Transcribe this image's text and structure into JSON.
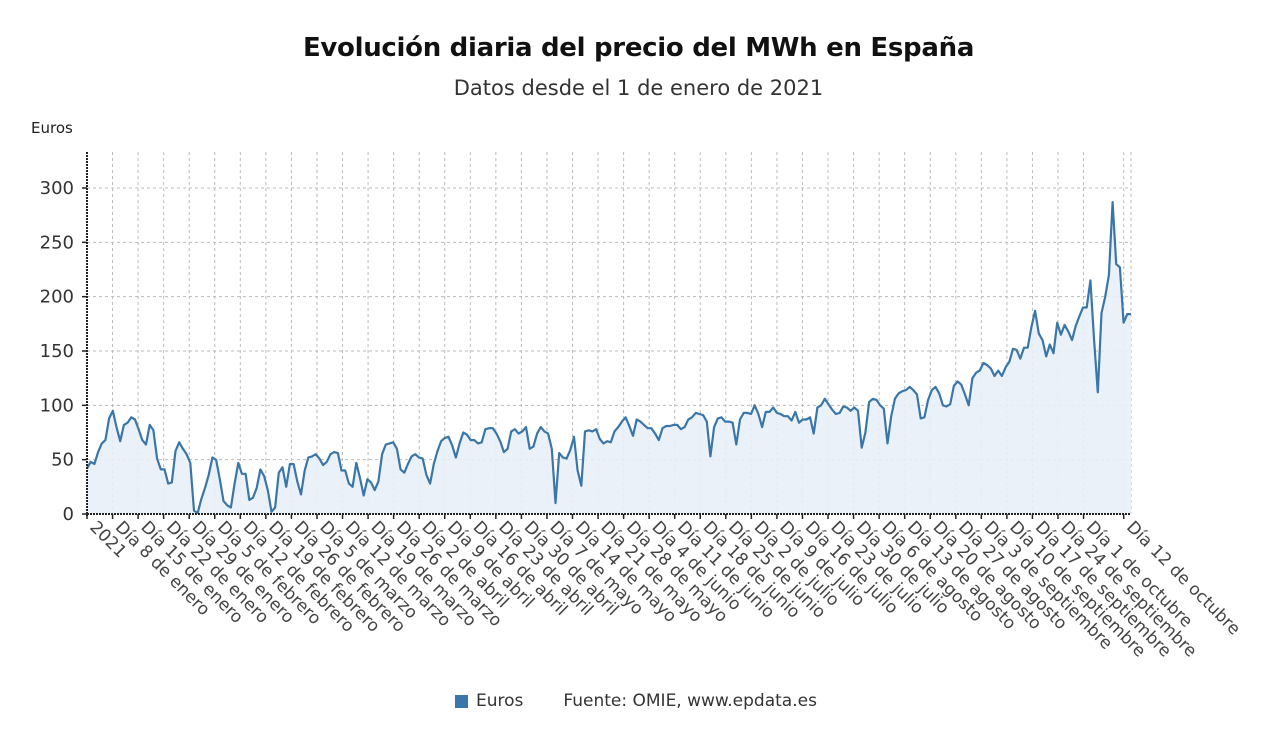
{
  "chart_data": {
    "type": "area",
    "title": "Evolución diaria del precio del MWh en España",
    "subtitle": "Datos desde el 1 de enero de 2021",
    "ylabel": "Euros",
    "xlabel": "",
    "ylim": [
      0,
      330
    ],
    "yticks": [
      0,
      50,
      100,
      150,
      200,
      250,
      300
    ],
    "grid": true,
    "legend": {
      "placement": "bottom-center",
      "entries": [
        "Euros"
      ]
    },
    "source": "Fuente: OMIE, www.epdata.es",
    "colors": {
      "line": "#3a76a8",
      "fill": "#e9eff7",
      "grid": "#bbbbbb"
    },
    "x_start": "2021-01-01",
    "x_end_day_index": 286,
    "xtick_labels": [
      "2021",
      "Día 8 de enero",
      "Día 15 de enero",
      "Día 22 de enero",
      "Día 29 de enero",
      "Día 5 de febrero",
      "Día 12 de febrero",
      "Día 19 de febrero",
      "Día 26 de febrero",
      "Día 5 de marzo",
      "Día 12 de marzo",
      "Día 19 de marzo",
      "Día 26 de marzo",
      "Día 2 de abril",
      "Día 9 de abril",
      "Día 16 de abril",
      "Día 23 de abril",
      "Día 30 de abril",
      "Día 7 de mayo",
      "Día 14 de mayo",
      "Día 21 de mayo",
      "Día 28 de mayo",
      "Día 4 de junio",
      "Día 11 de junio",
      "Día 18 de junio",
      "Día 25 de junio",
      "Día 2 de julio",
      "Día 9 de julio",
      "Día 16 de julio",
      "Día 23 de julio",
      "Día 30 de julio",
      "Día 6 de agosto",
      "Día 13 de agosto",
      "Día 20 de agosto",
      "Día 27 de agosto",
      "Día 3 de septiembre",
      "Día 10 de septiembre",
      "Día 17 de septiembre",
      "Día 24 de septiembre",
      "Día 1 de octubre",
      "Día 12 de octubre"
    ],
    "xtick_days": [
      0,
      7,
      14,
      21,
      28,
      35,
      42,
      49,
      56,
      63,
      70,
      77,
      84,
      91,
      98,
      105,
      112,
      119,
      126,
      133,
      140,
      147,
      154,
      161,
      168,
      175,
      182,
      189,
      196,
      203,
      210,
      217,
      224,
      231,
      238,
      245,
      252,
      259,
      266,
      273,
      284
    ],
    "series": [
      {
        "name": "Euros",
        "values": [
          42,
          48,
          46,
          57,
          65,
          68,
          88,
          95,
          80,
          67,
          82,
          84,
          89,
          87,
          78,
          68,
          64,
          82,
          77,
          51,
          41,
          41,
          28,
          29,
          58,
          66,
          60,
          55,
          47,
          3,
          1,
          14,
          24,
          36,
          52,
          50,
          32,
          12,
          8,
          6,
          28,
          47,
          37,
          37,
          13,
          15,
          24,
          41,
          35,
          22,
          2,
          6,
          38,
          43,
          25,
          46,
          46,
          30,
          18,
          40,
          52,
          53,
          55,
          51,
          45,
          48,
          55,
          57,
          56,
          40,
          40,
          28,
          25,
          47,
          33,
          17,
          32,
          29,
          22,
          30,
          55,
          64,
          65,
          66,
          60,
          41,
          38,
          46,
          53,
          55,
          52,
          51,
          36,
          28,
          46,
          58,
          67,
          70,
          71,
          63,
          52,
          65,
          75,
          73,
          68,
          68,
          65,
          66,
          78,
          79,
          79,
          74,
          67,
          57,
          60,
          76,
          78,
          74,
          76,
          80,
          60,
          62,
          74,
          80,
          76,
          74,
          60,
          10,
          56,
          52,
          51,
          59,
          71,
          40,
          26,
          76,
          77,
          76,
          78,
          69,
          65,
          67,
          66,
          76,
          80,
          85,
          89,
          81,
          72,
          87,
          85,
          82,
          79,
          79,
          74,
          68,
          79,
          81,
          81,
          82,
          82,
          78,
          80,
          87,
          89,
          93,
          92,
          91,
          85,
          53,
          80,
          88,
          89,
          85,
          85,
          84,
          64,
          87,
          93,
          93,
          92,
          100,
          92,
          80,
          94,
          94,
          98,
          93,
          92,
          90,
          90,
          86,
          94,
          84,
          87,
          87,
          89,
          74,
          98,
          100,
          106,
          101,
          96,
          92,
          93,
          99,
          98,
          95,
          98,
          95,
          61,
          75,
          103,
          106,
          105,
          100,
          97,
          65,
          90,
          106,
          111,
          113,
          114,
          117,
          114,
          110,
          88,
          89,
          105,
          114,
          117,
          111,
          100,
          99,
          101,
          118,
          122,
          119,
          110,
          100,
          125,
          130,
          132,
          139,
          137,
          134,
          127,
          132,
          127,
          135,
          140,
          152,
          151,
          143,
          153,
          153,
          172,
          187,
          166,
          160,
          145,
          156,
          148,
          176,
          165,
          174,
          168,
          160,
          173,
          182,
          190,
          190,
          215,
          160,
          112,
          185,
          200,
          220,
          287,
          230,
          227,
          176,
          184,
          184
        ]
      }
    ]
  }
}
